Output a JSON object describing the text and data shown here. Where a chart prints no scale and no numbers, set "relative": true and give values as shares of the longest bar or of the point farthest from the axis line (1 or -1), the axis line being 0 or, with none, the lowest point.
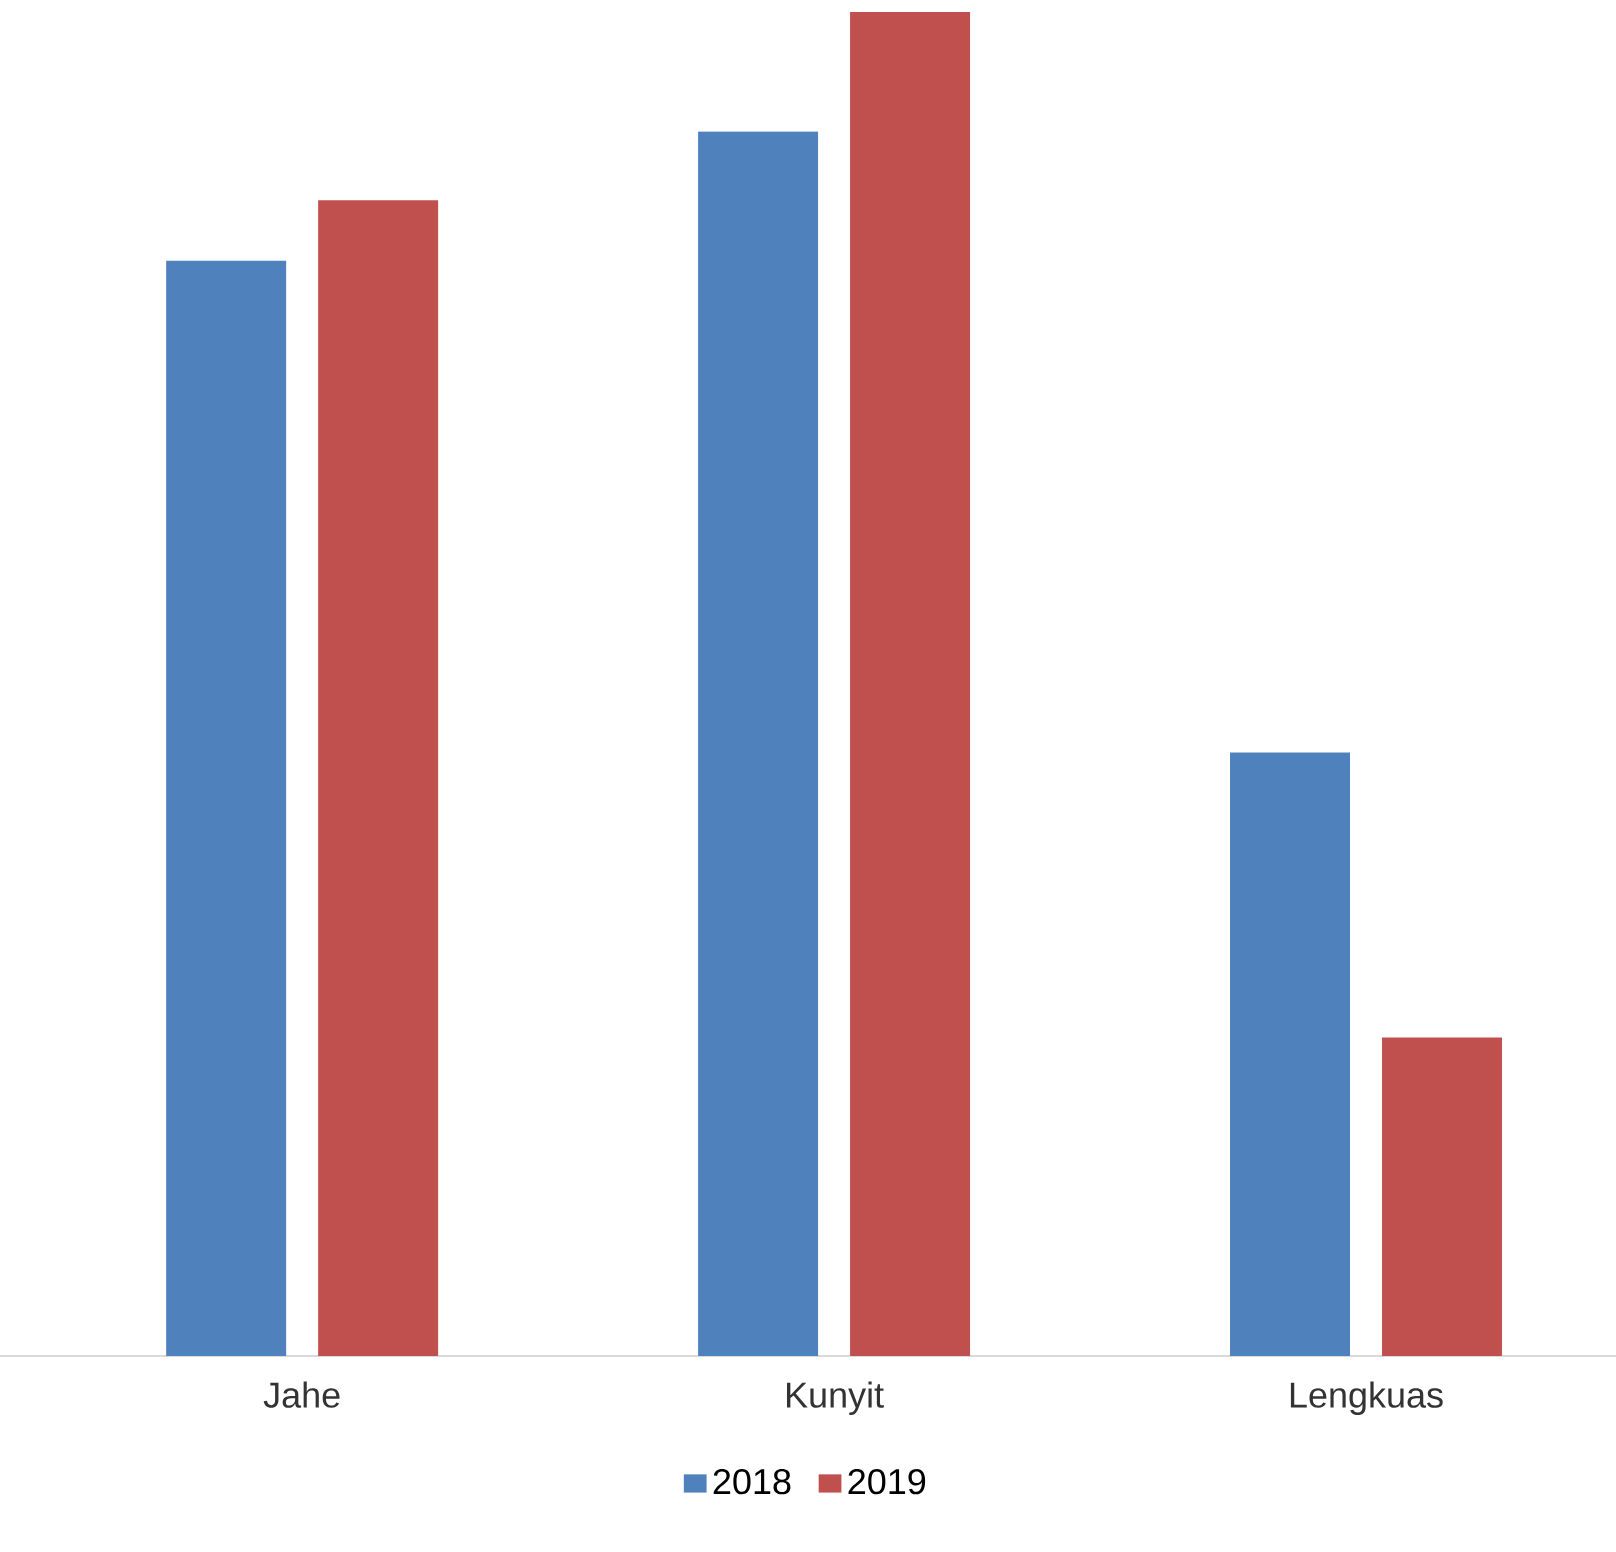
{
  "chart_data": {
    "type": "bar",
    "relative": true,
    "categories": [
      "Jahe",
      "Kunyit",
      "Lengkuas"
    ],
    "series": [
      {
        "name": "2018",
        "color": "#4f81bd",
        "values": [
          0.815,
          0.911,
          0.449
        ]
      },
      {
        "name": "2019",
        "color": "#c0504d",
        "values": [
          0.86,
          1,
          0.237
        ]
      }
    ],
    "legend": "bottom",
    "grid": false
  }
}
